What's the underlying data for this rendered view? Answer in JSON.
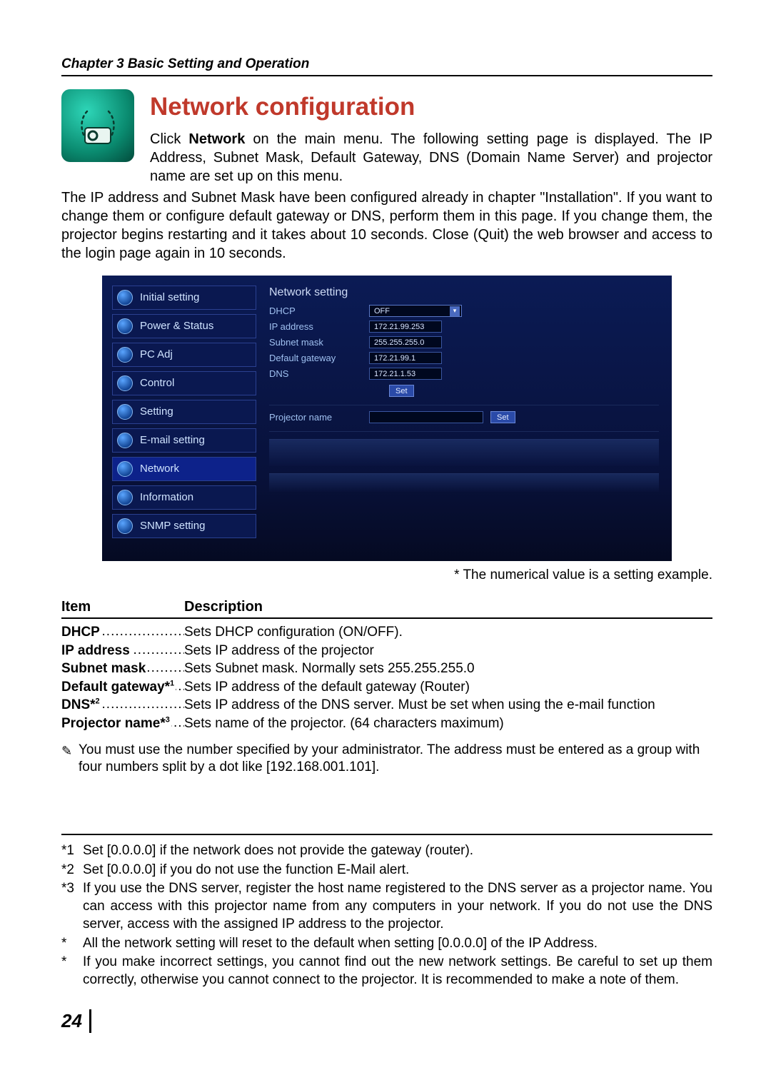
{
  "chapter_header": "Chapter 3 Basic Setting and Operation",
  "section_title": "Network configuration",
  "intro_1": "Click ",
  "intro_network_bold": "Network",
  "intro_2": " on the main menu. The following setting page is displayed. The IP Address, Subnet Mask, Default Gateway, DNS (Domain Name Server) and projector name are set up on this menu.",
  "body_para": "The IP address and Subnet Mask have been configured already in chapter \"Installation\". If you want to change them or configure default gateway or DNS, perform them in this page. If you change them, the projector begins restarting and it takes about 10 seconds. Close (Quit) the web browser and access to the login page again in 10 seconds.",
  "screenshot": {
    "menu": [
      "Initial setting",
      "Power & Status",
      "PC Adj",
      "Control",
      "Setting",
      "E-mail setting",
      "Network",
      "Information",
      "SNMP setting"
    ],
    "heading": "Network setting",
    "fields": {
      "dhcp_label": "DHCP",
      "dhcp_value": "OFF",
      "ip_label": "IP address",
      "ip_value": "172.21.99.253",
      "mask_label": "Subnet mask",
      "mask_value": "255.255.255.0",
      "gw_label": "Default gateway",
      "gw_value": "172.21.99.1",
      "dns_label": "DNS",
      "dns_value": "172.21.1.53",
      "set_btn": "Set",
      "proj_label": "Projector name",
      "proj_value": "",
      "proj_set_btn": "Set"
    }
  },
  "caption": "* The numerical value is a setting example.",
  "table_header_item": "Item",
  "table_header_desc": "Description",
  "desc_rows": [
    {
      "key": "DHCP",
      "sup": "",
      "val": "Sets DHCP configuration (ON/OFF)."
    },
    {
      "key": "IP address",
      "sup": "",
      "val": "Sets IP address of the projector"
    },
    {
      "key": "Subnet mask",
      "sup": "",
      "val": "Sets Subnet mask. Normally sets 255.255.255.0"
    },
    {
      "key": "Default gateway*",
      "sup": "1",
      "val": "Sets IP address of the default gateway (Router)"
    },
    {
      "key": "DNS*",
      "sup": "2",
      "val": "Sets IP address of the DNS server. Must be set when using the e-mail function"
    },
    {
      "key": "Projector name*",
      "sup": "3",
      "val": "Sets name of the projector. (64 characters maximum)"
    }
  ],
  "note": "You must use the number specified by your administrator. The address must be entered as a group with four numbers split by a dot like [192.168.001.101].",
  "footnotes": [
    {
      "marker": "*1",
      "text": "Set [0.0.0.0] if the network does not provide the gateway (router)."
    },
    {
      "marker": "*2",
      "text": "Set [0.0.0.0] if you do not use the function E-Mail alert."
    },
    {
      "marker": "*3",
      "text": "If you use the DNS server, register the host name registered to the DNS server as a projector name. You can access with this projector name from any computers in your network. If you do not use the DNS server, access with the assigned IP address to the projector."
    },
    {
      "marker": "*",
      "text": "All the network setting will reset to the default when setting [0.0.0.0] of the IP Address."
    },
    {
      "marker": "*",
      "text": "If you make incorrect settings, you cannot find out the new network settings. Be careful to set up them correctly, otherwise you cannot connect to the projector. It is recommended to make a note of them."
    }
  ],
  "page_number": "24"
}
